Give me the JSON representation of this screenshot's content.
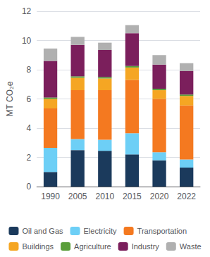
{
  "chart_data": {
    "type": "bar",
    "stacked": true,
    "categories": [
      "1990",
      "2005",
      "2010",
      "2015",
      "2020",
      "2022"
    ],
    "series": [
      {
        "name": "Oil and Gas",
        "color": "#1b3a5c",
        "values": [
          1.0,
          2.5,
          2.45,
          2.2,
          1.8,
          1.3
        ]
      },
      {
        "name": "Electricity",
        "color": "#6dcff6",
        "values": [
          1.65,
          0.75,
          0.75,
          1.45,
          0.55,
          0.55
        ]
      },
      {
        "name": "Transportation",
        "color": "#f47920",
        "values": [
          2.7,
          3.35,
          3.4,
          3.65,
          3.65,
          3.7
        ]
      },
      {
        "name": "Buildings",
        "color": "#f5a623",
        "values": [
          0.65,
          0.85,
          0.8,
          0.85,
          0.6,
          0.65
        ]
      },
      {
        "name": "Agriculture",
        "color": "#5a9e3a",
        "values": [
          0.1,
          0.1,
          0.1,
          0.1,
          0.1,
          0.1
        ]
      },
      {
        "name": "Industry",
        "color": "#7b1f5c",
        "values": [
          2.5,
          2.15,
          1.85,
          2.25,
          1.65,
          1.6
        ]
      },
      {
        "name": "Waste",
        "color": "#b0b0b0",
        "values": [
          0.85,
          0.55,
          0.5,
          0.55,
          0.65,
          0.55
        ]
      }
    ],
    "ylabel": "MT CO₂e",
    "ylim": [
      0,
      12
    ],
    "yticks": [
      0,
      2,
      4,
      6,
      8,
      10,
      12
    ],
    "grid": true,
    "legend": "bottom"
  }
}
